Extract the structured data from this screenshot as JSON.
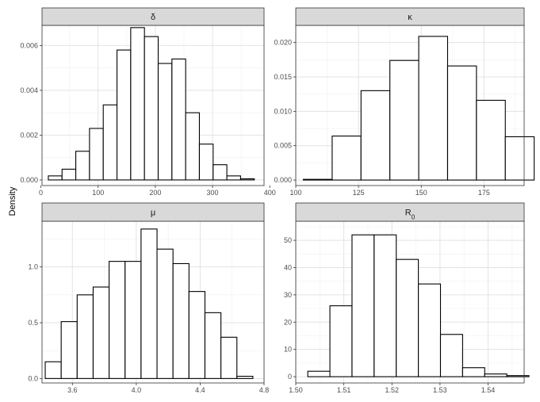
{
  "figure": {
    "ylabel": "Density"
  },
  "chart_data": [
    {
      "type": "bar",
      "title": "δ",
      "xlabel": "",
      "ylabel": "Density",
      "xlim": [
        2,
        390
      ],
      "ylim": [
        -0.00025,
        0.0069
      ],
      "xticks": [
        0,
        100,
        200,
        300,
        400
      ],
      "xtick_labels": [
        "0",
        "100",
        "200",
        "300",
        "400"
      ],
      "yticks": [
        0,
        0.002,
        0.004,
        0.006
      ],
      "ytick_labels": [
        "0.000",
        "0.002",
        "0.004",
        "0.006"
      ],
      "bin_edges": [
        13,
        37,
        61,
        85,
        109,
        133,
        157,
        181,
        205,
        229,
        253,
        277,
        301,
        325,
        349,
        373
      ],
      "values": [
        0.00018,
        0.00048,
        0.00128,
        0.0023,
        0.00335,
        0.0058,
        0.0068,
        0.0064,
        0.0052,
        0.0054,
        0.003,
        0.0016,
        0.00068,
        0.00018,
        5e-05
      ],
      "grid": true
    },
    {
      "type": "bar",
      "title": "κ",
      "xlabel": "",
      "ylabel": "Density",
      "xlim": [
        100,
        191
      ],
      "ylim": [
        -0.0008,
        0.0225
      ],
      "xticks": [
        100,
        125,
        150,
        175
      ],
      "xtick_labels": [
        "100",
        "125",
        "150",
        "175"
      ],
      "yticks": [
        0,
        0.005,
        0.01,
        0.015,
        0.02
      ],
      "ytick_labels": [
        "0.000",
        "0.005",
        "0.010",
        "0.015",
        "0.020"
      ],
      "bin_edges": [
        103,
        114.5,
        126,
        137.5,
        149,
        160.5,
        172,
        183.5,
        195
      ],
      "values": [
        0.0001,
        0.0064,
        0.013,
        0.0174,
        0.0209,
        0.0166,
        0.0116,
        0.0063
      ],
      "grid": true
    },
    {
      "type": "bar",
      "title": "μ",
      "xlabel": "",
      "ylabel": "Density",
      "xlim": [
        3.41,
        4.8
      ],
      "ylim": [
        -0.04,
        1.41
      ],
      "xticks": [
        3.6,
        4.0,
        4.4,
        4.8
      ],
      "xtick_labels": [
        "3.6",
        "4.0",
        "4.4",
        "4.8"
      ],
      "yticks": [
        0,
        0.5,
        1.0
      ],
      "ytick_labels": [
        "0.0",
        "0.5",
        "1.0"
      ],
      "bin_edges": [
        3.43,
        3.53,
        3.63,
        3.73,
        3.83,
        3.93,
        4.03,
        4.13,
        4.23,
        4.33,
        4.43,
        4.53,
        4.63,
        4.73
      ],
      "values": [
        0.15,
        0.51,
        0.75,
        0.82,
        1.05,
        1.05,
        1.34,
        1.16,
        1.03,
        0.78,
        0.59,
        0.37,
        0.02
      ],
      "grid": true
    },
    {
      "type": "bar",
      "title": "R0",
      "title_main": "R",
      "title_sub": "0",
      "xlabel": "",
      "ylabel": "Density",
      "xlim": [
        1.5,
        1.5475
      ],
      "ylim": [
        -2.3,
        57
      ],
      "xticks": [
        1.5,
        1.51,
        1.52,
        1.53,
        1.54
      ],
      "xtick_labels": [
        "1.50",
        "1.51",
        "1.52",
        "1.53",
        "1.54"
      ],
      "yticks": [
        0,
        10,
        20,
        30,
        40,
        50
      ],
      "ytick_labels": [
        "0",
        "10",
        "20",
        "30",
        "40",
        "50"
      ],
      "bin_edges": [
        1.5025,
        1.5071,
        1.5117,
        1.5163,
        1.5209,
        1.5255,
        1.5301,
        1.5347,
        1.5393,
        1.5439,
        1.5485
      ],
      "values": [
        2,
        26,
        52,
        52,
        43,
        34,
        15.5,
        3.3,
        1,
        0.4
      ],
      "grid": true
    }
  ]
}
